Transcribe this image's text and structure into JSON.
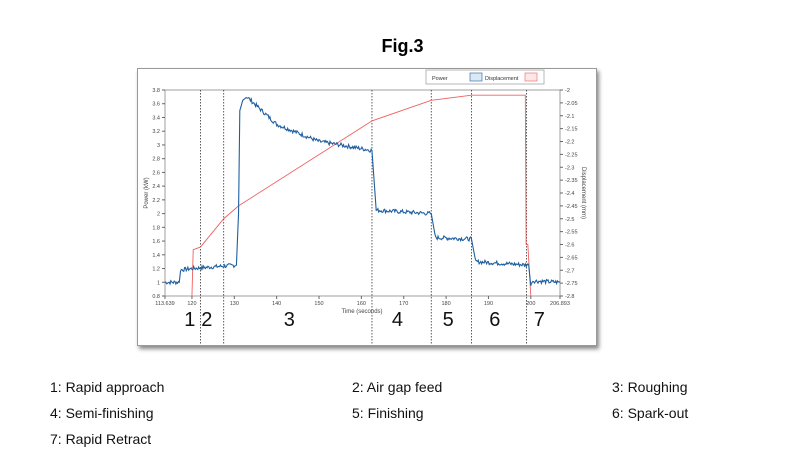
{
  "figure_title": "Fig.3",
  "chart_data": {
    "type": "line",
    "xlabel": "Time (seconds)",
    "ylabel": "Power (kW)",
    "y2label": "Displacement (mm)",
    "xlim": [
      113.639,
      206.893
    ],
    "ylim": [
      0.8,
      3.8
    ],
    "y2lim": [
      -2.8,
      -2.0
    ],
    "xticks": [
      "113.639",
      "120",
      "130",
      "140",
      "150",
      "160",
      "170",
      "180",
      "190",
      "200",
      "206.893"
    ],
    "xtick_values": [
      113.639,
      120,
      130,
      140,
      150,
      160,
      170,
      180,
      190,
      200,
      206.893
    ],
    "yticks": [
      "0.8",
      "1",
      "1.2",
      "1.4",
      "1.6",
      "1.8",
      "2",
      "2.2",
      "2.4",
      "2.6",
      "2.8",
      "3",
      "3.2",
      "3.4",
      "3.6",
      "3.8"
    ],
    "y2ticks": [
      "-2",
      "-2.05",
      "-2.1",
      "-2.15",
      "-2.2",
      "-2.25",
      "-2.3",
      "-2.35",
      "-2.4",
      "-2.45",
      "-2.5",
      "-2.55",
      "-2.6",
      "-2.65",
      "-2.7",
      "-2.75",
      "-2.8"
    ],
    "legend": [
      "Power",
      "Displacement"
    ],
    "legend_placement": "top-right",
    "colors": {
      "power": "#1f5fa0",
      "displacement": "#f06060"
    },
    "series": [
      {
        "name": "Power",
        "axis": "left",
        "x": [
          113.639,
          117,
          117.3,
          120,
          130.5,
          131,
          131.3,
          132,
          133,
          140,
          150,
          155,
          162.5,
          163.5,
          176.5,
          177.5,
          186,
          187,
          199.5,
          200,
          200.3,
          206.893
        ],
        "y": [
          1.0,
          1.0,
          1.18,
          1.2,
          1.25,
          2.0,
          3.5,
          3.65,
          3.7,
          3.3,
          3.05,
          3.0,
          2.92,
          2.05,
          2.0,
          1.65,
          1.63,
          1.3,
          1.25,
          0.95,
          1.02,
          1.0
        ]
      },
      {
        "name": "Displacement",
        "axis": "right",
        "x": [
          120,
          120.3,
          122,
          127.5,
          131,
          162.5,
          176.5,
          186,
          198.7,
          198.9,
          199.3,
          200
        ],
        "y": [
          -2.8,
          -2.62,
          -2.61,
          -2.5,
          -2.45,
          -2.12,
          -2.04,
          -2.02,
          -2.02,
          -2.6,
          -2.6,
          -2.8
        ]
      }
    ],
    "phase_boundaries": [
      122,
      127.5,
      162.5,
      176.5,
      186,
      199
    ],
    "phase_numbers": [
      "1",
      "2",
      "3",
      "4",
      "5",
      "6",
      "7"
    ],
    "phase_number_positions": [
      119.5,
      123.5,
      143,
      168.5,
      180.5,
      191.5,
      202
    ]
  },
  "phases": [
    "1: Rapid approach",
    "2: Air gap feed",
    "3: Roughing",
    "4: Semi-finishing",
    "5: Finishing",
    "6: Spark-out",
    "7: Rapid Retract"
  ]
}
